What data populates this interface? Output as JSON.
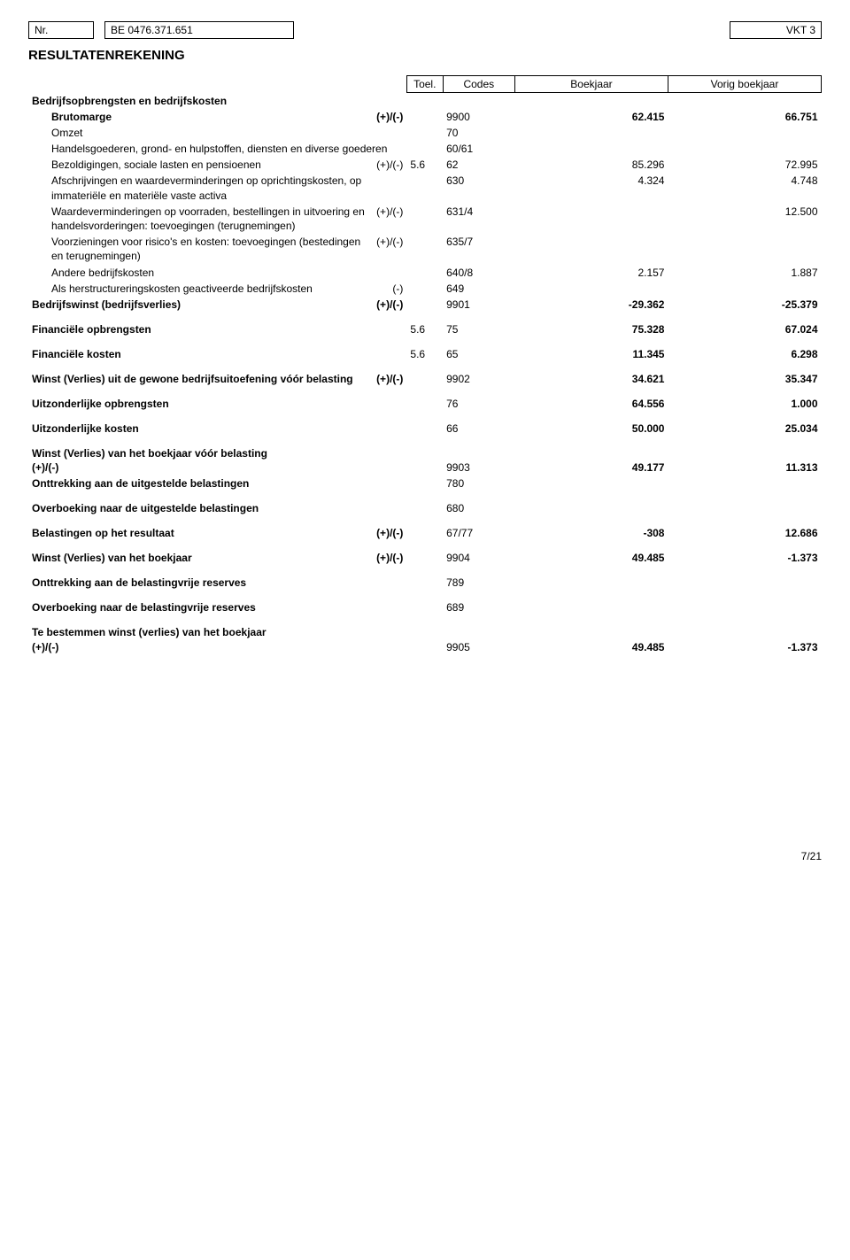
{
  "header": {
    "nr_label": "Nr.",
    "be_number": "BE 0476.371.651",
    "vkt_label": "VKT 3"
  },
  "title": "RESULTATENREKENING",
  "columns": {
    "toel": "Toel.",
    "codes": "Codes",
    "current": "Boekjaar",
    "previous": "Vorig boekjaar"
  },
  "rows": [
    {
      "label": "Bedrijfsopbrengsten en bedrijfskosten",
      "bold": true
    },
    {
      "label": "Brutomarge",
      "indent": 1,
      "bold": true,
      "sign": "(+)/(-)",
      "code": "9900",
      "cur": "62.415",
      "prev": "66.751"
    },
    {
      "label": "Omzet",
      "indent": 2,
      "code": "70"
    },
    {
      "label": "Handelsgoederen, grond- en hulpstoffen, diensten en diverse goederen",
      "indent": 2,
      "code": "60/61"
    },
    {
      "label": "Bezoldigingen, sociale lasten en pensioenen",
      "indent": 1,
      "sign": "(+)/(-)",
      "toel": "5.6",
      "code": "62",
      "cur": "85.296",
      "prev": "72.995"
    },
    {
      "label": "Afschrijvingen en waardeverminderingen op oprichtingskosten, op immateriële en materiële vaste activa",
      "indent": 1,
      "code": "630",
      "cur": "4.324",
      "prev": "4.748"
    },
    {
      "label": "Waardeverminderingen op voorraden, bestellingen in uitvoering en handelsvorderingen: toevoegingen (terugnemingen)",
      "indent": 1,
      "sign": "(+)/(-)",
      "code": "631/4",
      "prev": "12.500"
    },
    {
      "label": "Voorzieningen voor risico's en kosten: toevoegingen (bestedingen en terugnemingen)",
      "indent": 1,
      "sign": "(+)/(-)",
      "code": "635/7"
    },
    {
      "label": "Andere bedrijfskosten",
      "indent": 1,
      "code": "640/8",
      "cur": "2.157",
      "prev": "1.887"
    },
    {
      "label": "Als herstructureringskosten geactiveerde bedrijfskosten",
      "indent": 1,
      "sign": "(-)",
      "code": "649"
    },
    {
      "label": "Bedrijfswinst (bedrijfsverlies)",
      "bold": true,
      "sign": "(+)/(-)",
      "code": "9901",
      "cur": "-29.362",
      "prev": "-25.379",
      "pad": true
    },
    {
      "label": "Financiële opbrengsten",
      "bold": true,
      "toel": "5.6",
      "code": "75",
      "cur": "75.328",
      "prev": "67.024",
      "pad": true
    },
    {
      "label": "Financiële kosten",
      "bold": true,
      "toel": "5.6",
      "code": "65",
      "cur": "11.345",
      "prev": "6.298",
      "pad": true
    },
    {
      "label": "Winst (Verlies) uit de gewone bedrijfsuitoefening vóór belasting",
      "bold": true,
      "sign": "(+)/(-)",
      "code": "9902",
      "cur": "34.621",
      "prev": "35.347",
      "pad": true
    },
    {
      "label": "Uitzonderlijke opbrengsten",
      "bold": true,
      "code": "76",
      "cur": "64.556",
      "prev": "1.000",
      "pad": true
    },
    {
      "label": "Uitzonderlijke kosten",
      "bold": true,
      "code": "66",
      "cur": "50.000",
      "prev": "25.034",
      "pad": true
    },
    {
      "label": "Winst (Verlies) van het boekjaar vóór belasting",
      "bold": true,
      "signline": "(+)/(-)",
      "code": "9903",
      "cur": "49.177",
      "prev": "11.313",
      "pad": true
    },
    {
      "label": "Onttrekking aan de uitgestelde belastingen",
      "bold": true,
      "code": "780",
      "pad": true
    },
    {
      "label": "Overboeking naar de uitgestelde belastingen",
      "bold": true,
      "code": "680",
      "pad": true
    },
    {
      "label": "Belastingen op het resultaat",
      "bold": true,
      "sign": "(+)/(-)",
      "code": "67/77",
      "cur": "-308",
      "prev": "12.686",
      "pad": true
    },
    {
      "label": "Winst (Verlies) van het boekjaar",
      "bold": true,
      "sign": "(+)/(-)",
      "code": "9904",
      "cur": "49.485",
      "prev": "-1.373",
      "pad": true
    },
    {
      "label": "Onttrekking aan de belastingvrije reserves",
      "bold": true,
      "code": "789",
      "pad": true
    },
    {
      "label": "Overboeking naar de belastingvrije reserves",
      "bold": true,
      "code": "689",
      "pad": true
    },
    {
      "label": "Te bestemmen winst (verlies) van het boekjaar",
      "bold": true,
      "signline": "(+)/(-)",
      "code": "9905",
      "cur": "49.485",
      "prev": "-1.373",
      "pad": true
    }
  ],
  "footer": {
    "page": "7/21"
  }
}
